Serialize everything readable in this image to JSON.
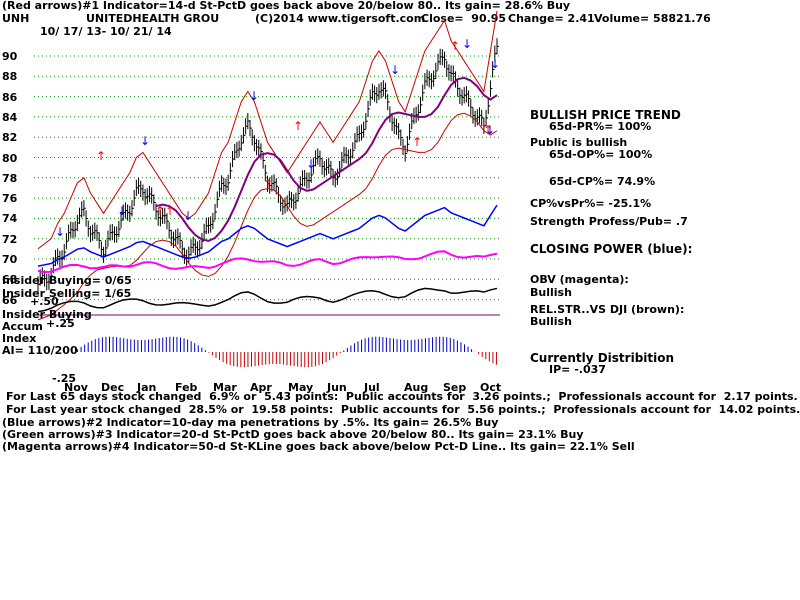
{
  "header": {
    "line1": "(Red arrows)#1 Indicator=14-d St-PctD goes back above 20/below 80.. Its gain= 28.6% Buy",
    "ticker": "UNH",
    "company": "UNITEDHEALTH GROU",
    "copyright": "(C)2014 www.tigersoft.com",
    "close": "Close=  90.95",
    "change": "Change= 2.41",
    "volume": "Volume= 58821.76",
    "date_range": "10/ 17/ 13- 10/ 21/ 14"
  },
  "right_panel": {
    "trend": "BULLISH PRICE TREND",
    "pr": "65d-PR%= 100%",
    "public": "Public is bullish",
    "op": "65d-OP%= 100%",
    "cp": "65d-CP%= 74.9%",
    "cpvspr": "CP%vsPr%= -25.1%",
    "strength": "Strength Profess/Pub= .7",
    "closing_power": "CLOSING POWER (blue):",
    "obv": "OBV (magenta):",
    "obv_state": "Bullish",
    "relstr": "REL.STR..VS DJI (brown):",
    "relstr_state": "Bullish",
    "dist": "Currently Distribition",
    "ip": "IP= -.037"
  },
  "left_labels": {
    "insider_buying": "Insider Buying= 0/65",
    "insider_selling": "Insider Selling= 1/65",
    "plus50": "+.50",
    "insider_buying2": "Insider Buying",
    "accum": "Accum",
    "plus25": "+.25",
    "index": "Index",
    "ai": "AI= 110/200",
    "minus25": "-.25"
  },
  "footer": {
    "l1": "For Last 65 days stock changed  6.9% or  5.43 points:  Public accounts for  3.26 points.;  Professionals account for  2.17 points.",
    "l2": "For Last year stock changed  28.5% or  19.58 points:  Public accounts for  5.56 points.;  Professionals account for  14.02 points.",
    "l3": "(Blue arrows)#2 Indicator=10-day ma penetrations by .5%. Its gain= 26.5% Buy",
    "l4": "(Green arrows)#3 Indicator=20-d St-PctD goes back above 20/below 80.. Its gain= 23.1% Buy",
    "l5": "(Magenta arrows)#4 Indicator=50-d St-KLine goes back above/below Pct-D Line.. Its gain= 22.1% Sell"
  },
  "chart_data": {
    "type": "line",
    "title": "UNH UNITEDHEALTH GROU",
    "y_ticks": [
      "90",
      "88",
      "86",
      "84",
      "82",
      "80",
      "78",
      "76",
      "74",
      "72",
      "70",
      "68",
      "66"
    ],
    "ylim": [
      66,
      91
    ],
    "x_ticks": [
      "Nov",
      "Dec",
      "Jan",
      "Feb",
      "Mar",
      "Apr",
      "May",
      "Jun",
      "Jul",
      "Aug",
      "Sep",
      "Oct"
    ],
    "price_close": [
      67.5,
      68,
      68.5,
      70,
      71,
      72.5,
      74,
      74.5,
      73,
      72,
      71,
      72,
      73,
      74,
      75,
      76.5,
      77,
      76,
      75,
      74,
      73,
      72,
      71,
      70.5,
      71,
      72,
      73,
      75,
      77,
      78,
      80,
      82,
      83,
      82,
      80,
      78,
      77,
      76,
      75,
      76,
      77,
      78,
      79,
      80,
      79,
      78,
      79,
      80,
      81,
      82,
      84,
      86,
      87,
      86,
      84,
      82,
      81,
      83,
      85,
      87,
      88,
      89,
      90,
      88,
      87,
      86,
      85,
      84,
      83,
      87,
      90.95
    ],
    "series": [
      {
        "name": "CLOSING POWER (blue)",
        "color": "#0000ff"
      },
      {
        "name": "OBV (magenta)",
        "color": "#ff00ff"
      },
      {
        "name": "REL.STR..VS DJI (brown)",
        "color": "#000000"
      }
    ],
    "grid": true
  },
  "colors": {
    "bars": "#000000",
    "band": "#cc0000",
    "ma": "#800080",
    "cp": "#0000ff",
    "obv": "#ff00ff",
    "red_arrow": "#ff0000",
    "blue_arrow": "#0000ff"
  }
}
